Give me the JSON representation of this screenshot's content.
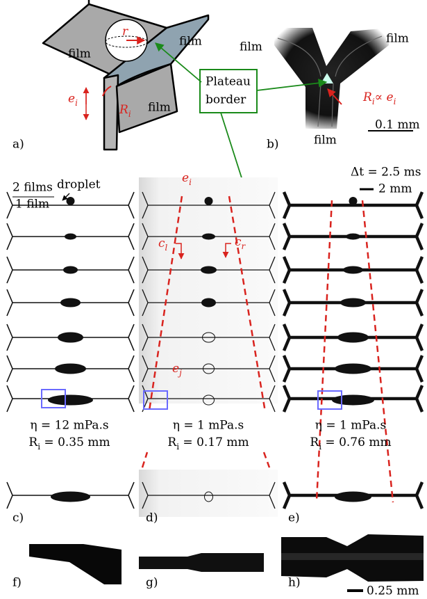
{
  "panel_a": {
    "label": "a)",
    "films": [
      "film",
      "film",
      "film"
    ],
    "radius": "r",
    "thickness": {
      "parts": [
        {
          "text": "e"
        },
        {
          "sub": "i"
        }
      ]
    },
    "border_radius": {
      "parts": [
        {
          "text": "R"
        },
        {
          "sub": "i"
        }
      ]
    }
  },
  "plateau_border": {
    "lines": [
      "Plateau",
      "border"
    ]
  },
  "panel_b": {
    "label": "b)",
    "films": [
      "film",
      "film",
      "film"
    ],
    "relation": {
      "parts": [
        {
          "text": "R"
        },
        {
          "sub": "i"
        },
        {
          "text": "∝ e"
        },
        {
          "sub": "i"
        }
      ]
    },
    "scale_bar": "0.1 mm"
  },
  "time_step": "Δt = 2.5 ms",
  "scale_bar": "2 mm",
  "panel_c": {
    "label": "c)",
    "droplet": "droplet",
    "two_films": "2 films",
    "one_film": "1 film",
    "viscosity": "η = 12 mPa.s",
    "radius": {
      "parts": [
        {
          "text": "R"
        },
        {
          "sub": "i"
        },
        {
          "text": " = 0.35 mm"
        }
      ]
    }
  },
  "panel_d": {
    "label": "d)",
    "thickness_i": {
      "parts": [
        {
          "text": "e"
        },
        {
          "sub": "i"
        }
      ]
    },
    "thickness_j": {
      "parts": [
        {
          "text": "e"
        },
        {
          "sub": "j"
        }
      ]
    },
    "speed_left": {
      "parts": [
        {
          "text": "c"
        },
        {
          "sub": "l"
        }
      ]
    },
    "speed_right": {
      "parts": [
        {
          "text": "c"
        },
        {
          "sub": "r"
        }
      ]
    },
    "viscosity": "η = 1 mPa.s",
    "radius": {
      "parts": [
        {
          "text": "R"
        },
        {
          "sub": "i"
        },
        {
          "text": " = 0.17 mm"
        }
      ]
    }
  },
  "panel_e": {
    "label": "e)",
    "viscosity": "η = 1 mPa.s",
    "radius": {
      "parts": [
        {
          "text": "R"
        },
        {
          "sub": "i"
        },
        {
          "text": " = 0.76 mm"
        }
      ]
    }
  },
  "panel_f": {
    "label": "f)"
  },
  "panel_g": {
    "label": "g)"
  },
  "panel_h": {
    "label": "h)"
  },
  "zoom_scale_bar": "0.25 mm"
}
